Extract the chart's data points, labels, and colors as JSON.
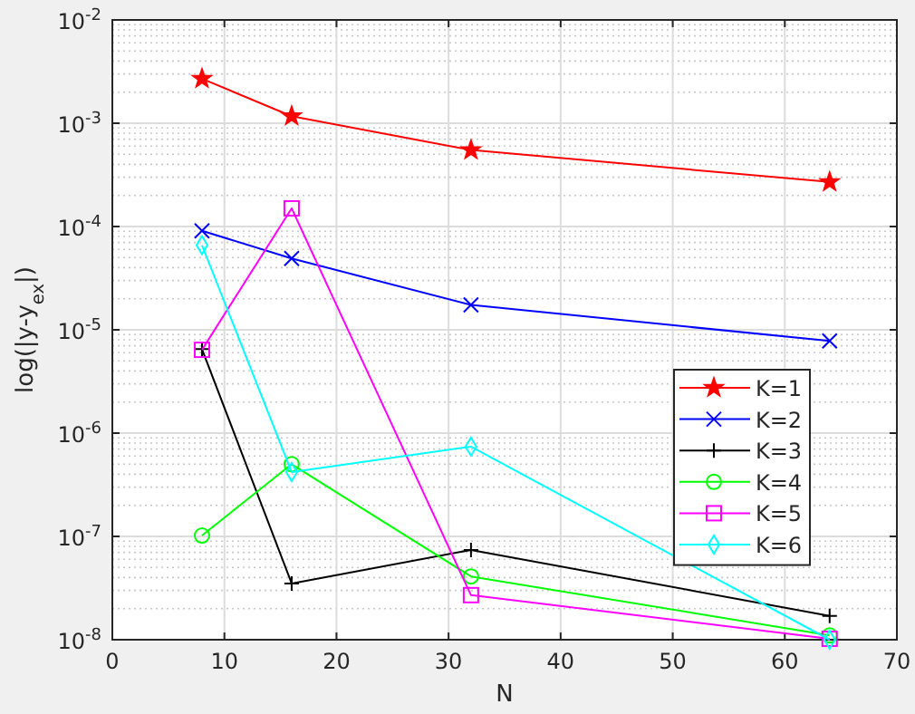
{
  "chart_data": {
    "type": "line",
    "xlabel": "N",
    "ylabel": "log(|y-y$_{ex}$|)",
    "log": "y",
    "grid": true,
    "legend": "right",
    "x": [
      8,
      16,
      32,
      64
    ],
    "xlim": [
      0,
      70
    ],
    "xticks": [
      0,
      10,
      20,
      30,
      40,
      50,
      60,
      70
    ],
    "ylim": [
      1e-08,
      0.01
    ],
    "yticks": [
      {
        "value": 1e-08,
        "label": "10$^{-8}$"
      },
      {
        "value": 1e-07,
        "label": "10$^{-7}$"
      },
      {
        "value": 1e-06,
        "label": "10$^{-6}$"
      },
      {
        "value": 1e-05,
        "label": "10$^{-5}$"
      },
      {
        "value": 0.0001,
        "label": "10$^{-4}$"
      },
      {
        "value": 0.001,
        "label": "10$^{-3}$"
      },
      {
        "value": 0.01,
        "label": "10$^{-2}$"
      }
    ],
    "series": [
      {
        "name": "K=1",
        "color": "#ff0000",
        "marker": "star",
        "values": [
          0.0027,
          0.00117,
          0.00055,
          0.00027
        ]
      },
      {
        "name": "K=2",
        "color": "#0000ff",
        "marker": "cross",
        "values": [
          9.1e-05,
          4.9e-05,
          1.74e-05,
          7.8e-06
        ]
      },
      {
        "name": "K=3",
        "color": "#000000",
        "marker": "plus",
        "values": [
          6.5e-06,
          3.5e-08,
          7.4e-08,
          1.7e-08
        ]
      },
      {
        "name": "K=4",
        "color": "#00ff00",
        "marker": "circle",
        "values": [
          1.02e-07,
          5e-07,
          4.1e-08,
          1.1e-08
        ]
      },
      {
        "name": "K=5",
        "color": "#ff00ff",
        "marker": "square",
        "values": [
          6.4e-06,
          0.00015,
          2.7e-08,
          1.02e-08
        ]
      },
      {
        "name": "K=6",
        "color": "#00ffff",
        "marker": "diamond",
        "values": [
          6.6e-05,
          4.2e-07,
          7.4e-07,
          1e-08
        ]
      }
    ]
  }
}
